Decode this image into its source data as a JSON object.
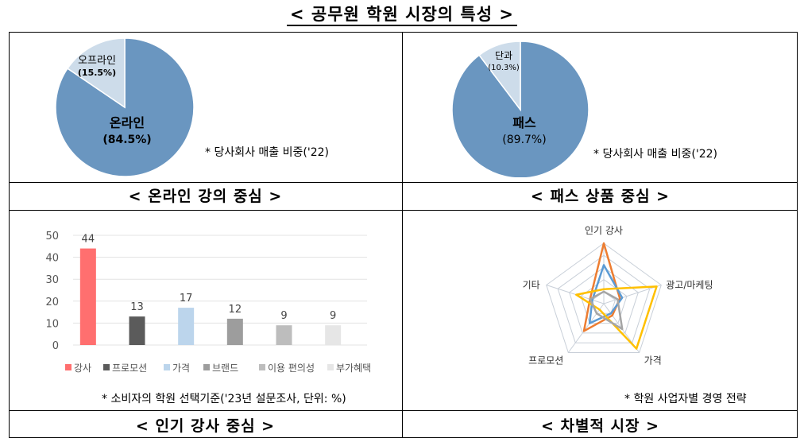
{
  "title": "< 공무원 학원 시장의 특성 >",
  "panels": {
    "top_left": {
      "caption": "< 온라인 강의 중심 >",
      "note": "* 당사회사 매출 비중('22)"
    },
    "top_right": {
      "caption": "< 패스 상품 중심 >",
      "note": "* 당사회사 매출 비중('22)"
    },
    "bottom_left": {
      "caption": "< 인기 강사 중심 >",
      "note": "* 소비자의 학원 선택기준('23년 설문조사, 단위: %)"
    },
    "bottom_right": {
      "caption": "< 차별적 시장 >",
      "note": "* 학원 사업자별 경영 전략"
    }
  },
  "chart_data": [
    {
      "type": "pie",
      "labels": [
        "온라인",
        "오프라인"
      ],
      "values": [
        84.5,
        15.5
      ],
      "value_labels": [
        "(84.5%)",
        "(15.5%)"
      ],
      "colors": [
        "#6a96c0",
        "#cddcea"
      ]
    },
    {
      "type": "pie",
      "labels": [
        "패스",
        "단과"
      ],
      "values": [
        89.7,
        10.3
      ],
      "value_labels": [
        "(89.7%)",
        "(10.3%)"
      ],
      "colors": [
        "#6a96c0",
        "#cddcea"
      ]
    },
    {
      "type": "bar",
      "categories": [
        "강사",
        "프로모션",
        "가격",
        "브랜드",
        "이용 편의성",
        "부가혜택"
      ],
      "values": [
        44,
        13,
        17,
        12,
        9,
        9
      ],
      "colors": [
        "#ff6f6f",
        "#5b5b5b",
        "#bcd5ec",
        "#9d9d9d",
        "#bdbdbd",
        "#e6e6e6"
      ],
      "ylim": [
        0,
        50
      ],
      "yticks": [
        "0",
        "10",
        "20",
        "30",
        "40",
        "50"
      ],
      "legend": "bottom"
    },
    {
      "type": "radar",
      "axes": [
        "인기 강사",
        "광고/마케팅",
        "가격",
        "프로모션",
        "기타"
      ],
      "max": 5,
      "series": [
        {
          "color": "#ed7d31",
          "values": [
            5,
            1.4,
            1.2,
            2.8,
            1.2
          ]
        },
        {
          "color": "#5b9bd5",
          "values": [
            3.2,
            1.6,
            1.0,
            2.0,
            1.0
          ]
        },
        {
          "color": "#ffc000",
          "values": [
            1.2,
            4.6,
            4.6,
            0.6,
            2.4
          ]
        },
        {
          "color": "#a5a5a5",
          "values": [
            1.0,
            1.2,
            2.6,
            1.0,
            1.2
          ]
        }
      ]
    }
  ]
}
